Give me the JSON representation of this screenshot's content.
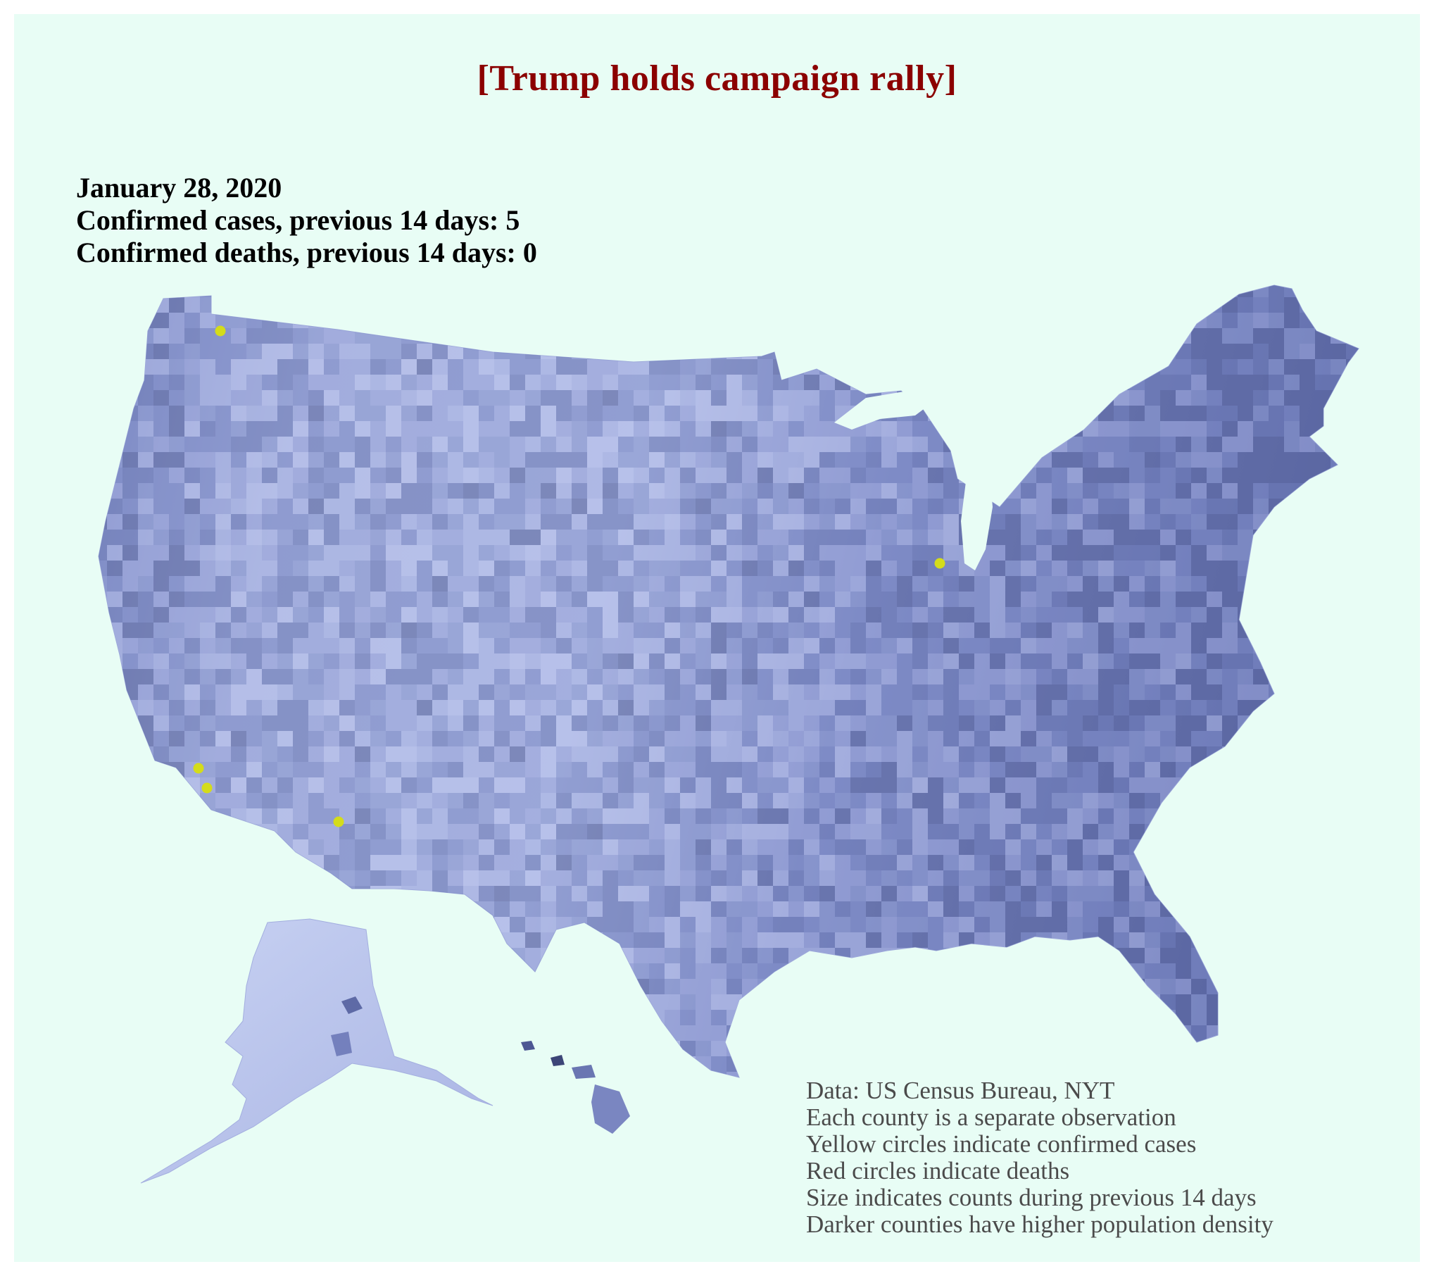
{
  "title": "[Trump holds campaign rally]",
  "stats": {
    "date": "January 28, 2020",
    "cases_line": "Confirmed cases, previous 14 days: 5",
    "deaths_line": "Confirmed deaths, previous 14 days: 0"
  },
  "notes": [
    "Data: US Census Bureau, NYT",
    "Each county is a separate observation",
    "Yellow  circles indicate confirmed cases",
    "Red circles indicate deaths",
    "Size indicates counts during previous 14 days",
    "Darker counties have higher population density"
  ],
  "colors": {
    "background": "#e8fdf5",
    "title": "#8b0000",
    "county_light": "#cdd6f2",
    "county_mid": "#98a4d6",
    "county_dark": "#3c4577",
    "case_marker": "#d4dc1a",
    "notes_text": "#4b4b4b"
  },
  "markers": [
    {
      "name": "Snohomish County, WA",
      "type": "case"
    },
    {
      "name": "Cook County, IL",
      "type": "case"
    },
    {
      "name": "Los Angeles County, CA",
      "type": "case"
    },
    {
      "name": "Orange County, CA",
      "type": "case"
    },
    {
      "name": "Maricopa County, AZ",
      "type": "case"
    }
  ]
}
